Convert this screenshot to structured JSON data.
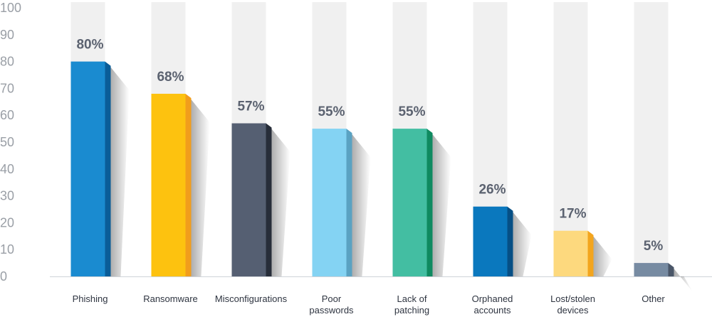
{
  "chart_data": {
    "type": "bar",
    "categories": [
      [
        "Phishing"
      ],
      [
        "Ransomware"
      ],
      [
        "Misconfigurations"
      ],
      [
        "Poor",
        "passwords"
      ],
      [
        "Lack of",
        "patching"
      ],
      [
        "Orphaned",
        "accounts"
      ],
      [
        "Lost/stolen",
        "devices"
      ],
      [
        "Other"
      ]
    ],
    "values": [
      80,
      68,
      57,
      55,
      55,
      26,
      17,
      5
    ],
    "value_labels": [
      "80%",
      "68%",
      "57%",
      "55%",
      "55%",
      "26%",
      "17%",
      "5%"
    ],
    "colors": [
      {
        "front": "#1a8bd0",
        "side": "#0a5d98"
      },
      {
        "front": "#fdc20f",
        "side": "#f19d1c"
      },
      {
        "front": "#555f72",
        "side": "#272d39"
      },
      {
        "front": "#84d3f3",
        "side": "#5aa2c2"
      },
      {
        "front": "#43bea2",
        "side": "#0f8a60"
      },
      {
        "front": "#0a78be",
        "side": "#064f85"
      },
      {
        "front": "#fdd97e",
        "side": "#f3a51e"
      },
      {
        "front": "#778ba2",
        "side": "#4a5668"
      }
    ],
    "yticks": [
      0,
      10,
      20,
      30,
      40,
      50,
      60,
      70,
      80,
      90,
      100
    ],
    "ylim": [
      0,
      100
    ],
    "title": "",
    "xlabel": "",
    "ylabel": "",
    "background_column_color": "#f0f0f0",
    "grid": false
  }
}
